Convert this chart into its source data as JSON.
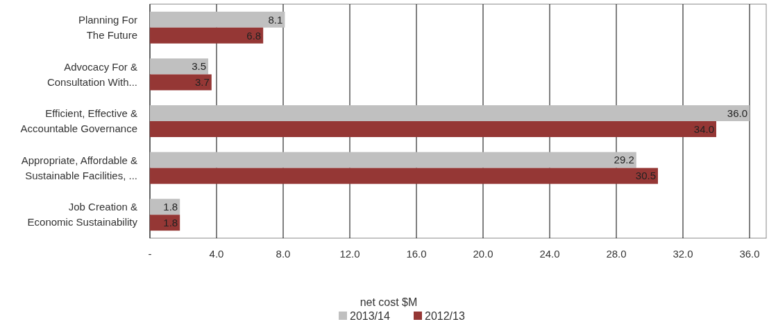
{
  "chart_data": {
    "type": "bar",
    "orientation": "horizontal",
    "categories": [
      "Planning For\nThe Future",
      "Advocacy For &\nConsultation With...",
      "Efficient, Effective &\nAccountable Governance",
      "Appropriate, Affordable &\nSustainable Facilities, ...",
      "Job Creation &\nEconomic Sustainability"
    ],
    "series": [
      {
        "name": "2013/14",
        "color": "#c0c0c0",
        "values": [
          8.1,
          3.5,
          36.0,
          29.2,
          1.8
        ],
        "value_labels": [
          "8.1",
          "3.5",
          "36.0",
          "29.2",
          "1.8"
        ]
      },
      {
        "name": "2012/13",
        "color": "#953735",
        "values": [
          6.8,
          3.7,
          34.0,
          30.5,
          1.8
        ],
        "value_labels": [
          "6.8",
          "3.7",
          "34.0",
          "30.5",
          "1.8"
        ]
      }
    ],
    "xlim": [
      0,
      37
    ],
    "xticks": [
      {
        "value": 0,
        "label": "-"
      },
      {
        "value": 4,
        "label": "4.0"
      },
      {
        "value": 8,
        "label": "8.0"
      },
      {
        "value": 12,
        "label": "12.0"
      },
      {
        "value": 16,
        "label": "16.0"
      },
      {
        "value": 20,
        "label": "20.0"
      },
      {
        "value": 24,
        "label": "24.0"
      },
      {
        "value": 28,
        "label": "28.0"
      },
      {
        "value": 32,
        "label": "32.0"
      },
      {
        "value": 36,
        "label": "36.0"
      }
    ],
    "xlabel": "net cost $M",
    "grid": "x",
    "legend": "bottom"
  }
}
